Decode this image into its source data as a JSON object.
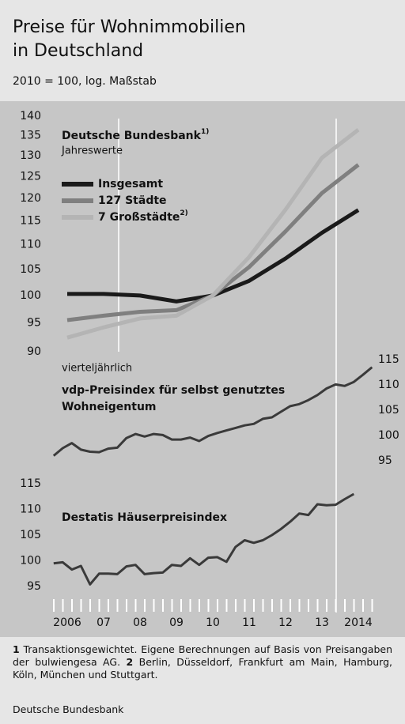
{
  "title_lines": [
    "Preise für Wohnimmobilien",
    "in Deutschland"
  ],
  "subtitle": "2010 = 100, log. Maßstab",
  "chart_data": [
    {
      "type": "line",
      "title": "Deutsche Bundesbank",
      "title_note": "1)",
      "subtitle": "Jahreswerte",
      "x": [
        2006,
        2007,
        2008,
        2009,
        2010,
        2011,
        2012,
        2013,
        2014
      ],
      "ylim": [
        90,
        140
      ],
      "yticks": [
        90,
        95,
        100,
        105,
        110,
        115,
        120,
        125,
        130,
        135,
        140
      ],
      "log": true,
      "series": [
        {
          "name": "Insgesamt",
          "color": "#1a1a1a",
          "values": [
            100.3,
            100.3,
            100.0,
            98.9,
            100,
            102.8,
            107.2,
            112.5,
            117.4
          ]
        },
        {
          "name": "127 Städte",
          "color": "#7f7f7f",
          "values": [
            95.5,
            96.3,
            97.0,
            97.3,
            100,
            105.5,
            112.8,
            121.2,
            127.8
          ]
        },
        {
          "name": "7 Großstädte",
          "note": "2)",
          "color": "#b4b4b4",
          "values": [
            92.4,
            94.2,
            95.8,
            96.3,
            100,
            107.5,
            117.5,
            129.5,
            136.5
          ]
        }
      ]
    },
    {
      "type": "line",
      "annotation": "vierteljährlich",
      "title_lines": [
        "vdp-Preisindex für selbst genutztes",
        "Wohneigentum"
      ],
      "y2lim": [
        95,
        115
      ],
      "y2ticks": [
        95,
        100,
        105,
        110,
        115
      ],
      "series": [
        {
          "color": "#3a3a3a",
          "axis": "y2",
          "values": [
            96.0,
            97.5,
            98.5,
            97.2,
            96.8,
            96.7,
            97.4,
            97.6,
            99.5,
            100.3,
            99.8,
            100.3,
            100.1,
            99.2,
            99.2,
            99.6,
            98.9,
            99.9,
            100.5,
            101.0,
            101.5,
            102.0,
            102.3,
            103.3,
            103.6,
            104.7,
            105.8,
            106.2,
            107.0,
            108.0,
            109.3,
            110.1,
            109.8,
            110.6,
            112.0,
            113.5
          ]
        }
      ]
    },
    {
      "type": "line",
      "title": "Destatis Häuserpreisindex",
      "ylim": [
        95,
        115
      ],
      "yticks": [
        95,
        100,
        105,
        110,
        115
      ],
      "xticks": [
        {
          "value": 2006,
          "label": "2006"
        },
        {
          "value": 2007,
          "label": "07"
        },
        {
          "value": 2008,
          "label": "08"
        },
        {
          "value": 2009,
          "label": "09"
        },
        {
          "value": 2010,
          "label": "10"
        },
        {
          "value": 2011,
          "label": "11"
        },
        {
          "value": 2012,
          "label": "12"
        },
        {
          "value": 2013,
          "label": "13"
        },
        {
          "value": 2014,
          "label": "2014"
        }
      ],
      "series": [
        {
          "color": "#3a3a3a",
          "values": [
            99.5,
            99.7,
            98.3,
            99.0,
            95.4,
            97.5,
            97.5,
            97.4,
            98.9,
            99.2,
            97.4,
            97.6,
            97.7,
            99.2,
            99.0,
            100.5,
            99.2,
            100.6,
            100.7,
            99.8,
            102.7,
            104.0,
            103.5,
            104.0,
            105.0,
            106.2,
            107.6,
            109.2,
            108.9,
            111.0,
            110.8,
            110.9,
            112.0,
            113.0
          ]
        }
      ]
    }
  ],
  "footnotes": [
    {
      "mark": "1",
      "text": "Transaktionsgewichtet. Eigene Berechnungen auf Basis von Preisangaben der bulwiengesa AG."
    },
    {
      "mark": "2",
      "text": "Berlin, Düsseldorf, Frankfurt am Main, Hamburg, Köln, München und Stuttgart."
    }
  ],
  "source": "Deutsche Bundesbank"
}
